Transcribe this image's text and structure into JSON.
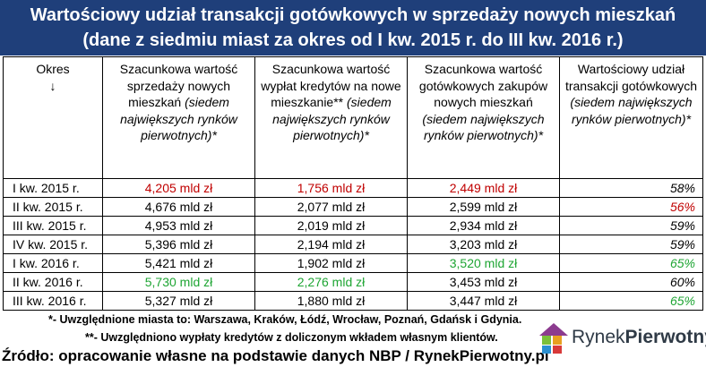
{
  "title": {
    "line1": "Wartościowy udział transakcji gotówkowych w sprzedaży nowych mieszkań",
    "line2": "(dane z siedmiu miast za okres od I kw. 2015 r. do III kw. 2016 r.)"
  },
  "table": {
    "headers": {
      "period": "Okres",
      "period_arrow": "↓",
      "col1_main": "Szacunkowa wartość sprzedaży nowych mieszkań",
      "col1_note": "(siedem największych rynków pierwotnych)*",
      "col2_main": "Szacunkowa wartość wypłat kredytów na nowe mieszkanie**",
      "col2_note": "(siedem największych rynków pierwotnych)*",
      "col3_main": "Szacunkowa wartość gotówkowych zakupów nowych mieszkań",
      "col3_note": "(siedem największych rynków pierwotnych)*",
      "col4_main": "Wartościowy udział transakcji gotówkowych",
      "col4_note": "(siedem największych rynków pierwotnych)*"
    },
    "rows": [
      {
        "period": "I kw. 2015 r.",
        "sales": "4,205 mld zł",
        "credits": "1,756 mld zł",
        "cash": "2,449 mld zł",
        "share": "58%"
      },
      {
        "period": "II kw. 2015 r.",
        "sales": "4,676 mld zł",
        "credits": "2,077 mld zł",
        "cash": "2,599 mld zł",
        "share": "56%"
      },
      {
        "period": "III kw. 2015 r.",
        "sales": "4,953 mld zł",
        "credits": "2,019 mld zł",
        "cash": "2,934 mld zł",
        "share": "59%"
      },
      {
        "period": "IV kw. 2015 r.",
        "sales": "5,396 mld zł",
        "credits": "2,194 mld zł",
        "cash": "3,203 mld zł",
        "share": "59%"
      },
      {
        "period": "I kw. 2016 r.",
        "sales": "5,421 mld zł",
        "credits": "1,902 mld zł",
        "cash": "3,520 mld zł",
        "share": "65%"
      },
      {
        "period": "II kw. 2016 r.",
        "sales": "5,730 mld zł",
        "credits": "2,276 mld zł",
        "cash": "3,453 mld zł",
        "share": "60%"
      },
      {
        "period": "III kw. 2016 r.",
        "sales": "5,327 mld zł",
        "credits": "1,880 mld zł",
        "cash": "3,447 mld zł",
        "share": "65%"
      }
    ]
  },
  "colors": {
    "banner": "#1f3f7a",
    "low": "#c00000",
    "high": "#1ea533"
  },
  "footnotes": {
    "note1": "*- Uwzględnione miasta to: Warszawa, Kraków, Łódź, Wrocław, Poznań, Gdańsk i Gdynia.",
    "note2": "**- Uwzględniono wypłaty kredytów z doliczonym wkładem własnym klientów.",
    "source": "Źródło: opracowanie własne na podstawie danych NBP / RynekPierwotny.pl"
  },
  "logo": {
    "part1": "Rynek",
    "part2": "Pierwotny",
    "icon": "house-logo-icon"
  }
}
